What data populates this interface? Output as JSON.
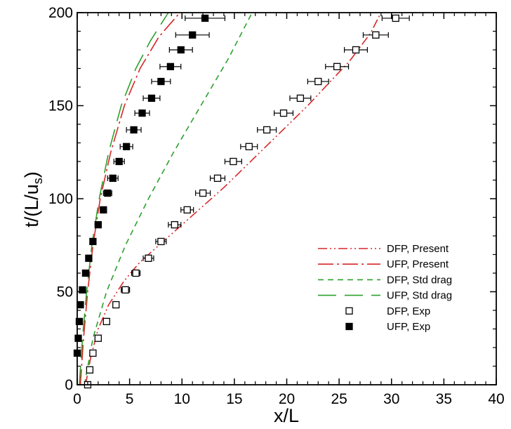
{
  "chart_data": {
    "type": "scatter",
    "title": "",
    "xlabel": "x/L",
    "ylabel_main": "t/(L/u",
    "ylabel_sub": "s",
    "ylabel_tail": ")",
    "xlim": [
      0,
      40
    ],
    "ylim": [
      0,
      200
    ],
    "xticks": [
      0,
      5,
      10,
      15,
      20,
      25,
      30,
      35,
      40
    ],
    "yticks": [
      0,
      50,
      100,
      150,
      200
    ],
    "grid": false,
    "legend_position": "lower-right",
    "series": [
      {
        "name": "DFP, Present",
        "kind": "line",
        "dash": "dashdotdot",
        "color": "#d62728",
        "x": [
          0.8,
          1.3,
          2.0,
          3.0,
          4.5,
          6.0,
          8.0,
          10.0,
          12.0,
          14.0,
          16.0,
          18.0,
          20.0,
          22.0,
          24.0,
          26.0,
          28.0,
          29.0
        ],
        "y": [
          0,
          15,
          30,
          43,
          56,
          66,
          76,
          86,
          96,
          106,
          117,
          128,
          139,
          150,
          162,
          174,
          189,
          200
        ]
      },
      {
        "name": "UFP, Present",
        "kind": "line",
        "dash": "longdashdot",
        "color": "#d62728",
        "x": [
          0.3,
          0.6,
          1.0,
          1.5,
          2.2,
          3.2,
          4.5,
          6.0,
          7.8,
          9.8
        ],
        "y": [
          0,
          25,
          50,
          75,
          100,
          125,
          150,
          170,
          187,
          200
        ]
      },
      {
        "name": "DFP, Std drag",
        "kind": "line",
        "dash": "dash",
        "color": "#2ca02c",
        "x": [
          0.7,
          1.5,
          2.8,
          4.6,
          6.8,
          9.2,
          11.8,
          14.4,
          16.7
        ],
        "y": [
          0,
          25,
          50,
          75,
          100,
          125,
          150,
          175,
          200
        ]
      },
      {
        "name": "UFP, Std drag",
        "kind": "line",
        "dash": "longdash",
        "color": "#2ca02c",
        "x": [
          0.2,
          0.5,
          0.9,
          1.4,
          2.1,
          3.0,
          4.2,
          5.6,
          7.0,
          8.7
        ],
        "y": [
          0,
          25,
          50,
          75,
          100,
          125,
          150,
          170,
          185,
          200
        ]
      },
      {
        "name": "DFP, Exp",
        "kind": "points",
        "marker": "square-open",
        "color": "#000000",
        "x": [
          1.0,
          1.2,
          1.5,
          2.0,
          2.8,
          3.7,
          4.6,
          5.6,
          6.8,
          8.0,
          9.3,
          10.5,
          12.0,
          13.4,
          14.9,
          16.4,
          18.1,
          19.7,
          21.3,
          23.0,
          24.8,
          26.6,
          28.5,
          30.4
        ],
        "y": [
          0,
          8,
          17,
          25,
          34,
          43,
          51,
          60,
          68,
          77,
          86,
          94,
          103,
          111,
          120,
          128,
          137,
          146,
          154,
          163,
          171,
          180,
          188,
          197
        ],
        "xerr": [
          0,
          0,
          0,
          0,
          0,
          0,
          0.4,
          0.4,
          0.5,
          0.5,
          0.6,
          0.6,
          0.7,
          0.7,
          0.8,
          0.8,
          0.9,
          0.9,
          1.0,
          1.0,
          1.1,
          1.1,
          1.2,
          1.3
        ]
      },
      {
        "name": "UFP, Exp",
        "kind": "points",
        "marker": "square-filled",
        "color": "#000000",
        "x": [
          0.0,
          0.1,
          0.2,
          0.3,
          0.5,
          0.8,
          1.1,
          1.5,
          2.0,
          2.5,
          2.9,
          3.4,
          4.0,
          4.7,
          5.4,
          6.2,
          7.1,
          8.0,
          8.9,
          9.9,
          11.0,
          12.2
        ],
        "y": [
          17,
          25,
          34,
          43,
          51,
          60,
          68,
          77,
          86,
          94,
          103,
          111,
          120,
          128,
          137,
          146,
          154,
          163,
          171,
          180,
          188,
          197
        ],
        "xerr": [
          0,
          0,
          0,
          0,
          0,
          0,
          0,
          0,
          0,
          0.3,
          0.4,
          0.5,
          0.5,
          0.6,
          0.7,
          0.7,
          0.8,
          0.9,
          1.0,
          1.1,
          1.6,
          1.9
        ]
      }
    ]
  }
}
